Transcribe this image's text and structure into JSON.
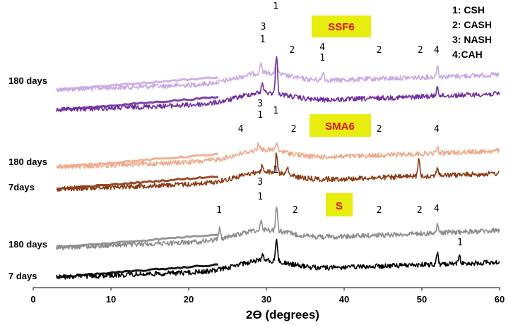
{
  "chart_data": {
    "type": "line",
    "title": "",
    "xlabel": "2ϴ (degrees)",
    "ylabel": "",
    "xlim": [
      0,
      60
    ],
    "xticks": [
      0,
      10,
      20,
      30,
      40,
      50,
      60
    ],
    "legend": [
      "1: CSH",
      "2: CASH",
      "3: NASH",
      "4:CAH"
    ],
    "sample_labels": [
      {
        "name": "SSF6",
        "box_color": "#e7ed0e",
        "text_color": "#e01010"
      },
      {
        "name": "SMA6",
        "box_color": "#e7ed0e",
        "text_color": "#e01010"
      },
      {
        "name": "S",
        "box_color": "#e7ed0e",
        "text_color": "#e01010"
      }
    ],
    "series": [
      {
        "name": "180 days",
        "group": "SSF6",
        "color": "#c9a8e3",
        "two_theta_start": 3,
        "two_theta_end": 60,
        "features": [
          {
            "x": 29.3,
            "peak": 0.3
          },
          {
            "x": 31.3,
            "peak": 0.45
          },
          {
            "x": 37.3,
            "peak": 0.25
          },
          {
            "x": 52.0,
            "peak": 0.35
          }
        ]
      },
      {
        "name": "",
        "group": "SSF6",
        "color": "#7030a0",
        "two_theta_start": 3,
        "two_theta_end": 60,
        "features": [
          {
            "x": 29.5,
            "peak": 0.25
          },
          {
            "x": 31.3,
            "peak": 1.0
          },
          {
            "x": 52.0,
            "peak": 0.25
          }
        ]
      },
      {
        "name": "180 days",
        "group": "SMA6",
        "color": "#eea98a",
        "two_theta_start": 3,
        "two_theta_end": 60,
        "features": [
          {
            "x": 29.0,
            "peak": 0.3
          },
          {
            "x": 31.3,
            "peak": 0.3
          },
          {
            "x": 52.0,
            "peak": 0.25
          }
        ]
      },
      {
        "name": "7days",
        "group": "SMA6",
        "color": "#8b3a14",
        "two_theta_start": 3,
        "two_theta_end": 60,
        "features": [
          {
            "x": 29.5,
            "peak": 0.25
          },
          {
            "x": 31.3,
            "peak": 0.7
          },
          {
            "x": 32.7,
            "peak": 0.25
          },
          {
            "x": 49.6,
            "peak": 0.6
          },
          {
            "x": 52.0,
            "peak": 0.3
          }
        ]
      },
      {
        "name": "180 days",
        "group": "S",
        "color": "#8c8c8c",
        "two_theta_start": 3,
        "two_theta_end": 60,
        "features": [
          {
            "x": 24.0,
            "peak": 0.45
          },
          {
            "x": 29.3,
            "peak": 0.3
          },
          {
            "x": 31.3,
            "peak": 0.9
          },
          {
            "x": 52.0,
            "peak": 0.3
          }
        ]
      },
      {
        "name": "7 days",
        "group": "S",
        "color": "#000000",
        "two_theta_start": 3,
        "two_theta_end": 60,
        "features": [
          {
            "x": 29.5,
            "peak": 0.25
          },
          {
            "x": 31.3,
            "peak": 0.8
          },
          {
            "x": 52.0,
            "peak": 0.4
          },
          {
            "x": 54.8,
            "peak": 0.3
          }
        ]
      }
    ],
    "peak_annotations": [
      {
        "text": "1",
        "x": 31.2,
        "group": "SSF6",
        "level": 2
      },
      {
        "text": "3",
        "x": 29.6,
        "group": "SSF6",
        "level": 1
      },
      {
        "text": "1",
        "x": 29.5,
        "group": "SSF6",
        "level": 0
      },
      {
        "text": "2",
        "x": 33.3,
        "group": "SSF6",
        "level": 0
      },
      {
        "text": "4",
        "x": 37.2,
        "group": "SSF6",
        "level": 1
      },
      {
        "text": "1",
        "x": 37.2,
        "group": "SSF6",
        "level": 0
      },
      {
        "text": "2",
        "x": 44.5,
        "group": "SSF6",
        "level": 0
      },
      {
        "text": "2",
        "x": 49.8,
        "group": "SSF6",
        "level": 0
      },
      {
        "text": "4",
        "x": 51.9,
        "group": "SSF6",
        "level": 0
      },
      {
        "text": "3",
        "x": 29.2,
        "group": "SMA6",
        "level": 1
      },
      {
        "text": "1",
        "x": 29.2,
        "group": "SMA6",
        "level": 0
      },
      {
        "text": "1",
        "x": 31.2,
        "group": "SMA6",
        "level": 0
      },
      {
        "text": "4",
        "x": 26.7,
        "group": "SMA6",
        "level": 0
      },
      {
        "text": "2",
        "x": 33.5,
        "group": "SMA6",
        "level": 0
      },
      {
        "text": "2",
        "x": 44.5,
        "group": "SMA6",
        "level": 0
      },
      {
        "text": "4",
        "x": 51.9,
        "group": "SMA6",
        "level": 0
      },
      {
        "text": "1",
        "x": 31.2,
        "group": "S",
        "level": 1
      },
      {
        "text": "3",
        "x": 29.2,
        "group": "S",
        "level": 1
      },
      {
        "text": "1",
        "x": 29.2,
        "group": "S",
        "level": 0
      },
      {
        "text": "1",
        "x": 23.9,
        "group": "S",
        "level": 0
      },
      {
        "text": "2",
        "x": 33.7,
        "group": "S",
        "level": 0
      },
      {
        "text": "2",
        "x": 44.5,
        "group": "S",
        "level": 0
      },
      {
        "text": "2",
        "x": 49.7,
        "group": "S",
        "level": 0
      },
      {
        "text": "4",
        "x": 51.9,
        "group": "S",
        "level": 0
      },
      {
        "text": "1",
        "x": 54.9,
        "group": "S",
        "level": -1
      }
    ],
    "grid": false,
    "legend_position": "top-right"
  }
}
